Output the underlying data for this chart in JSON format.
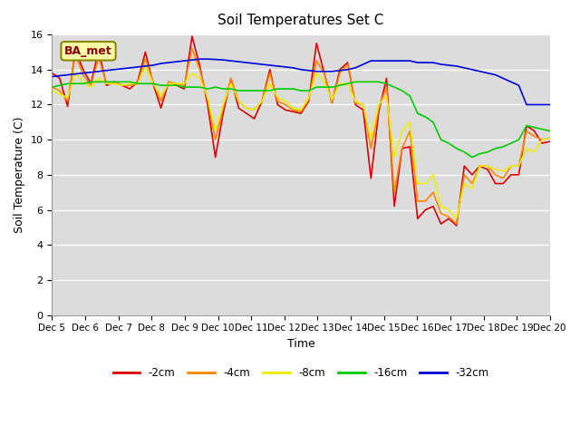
{
  "title": "Soil Temperatures Set C",
  "xlabel": "Time",
  "ylabel": "Soil Temperature (C)",
  "ylim": [
    0,
    16
  ],
  "yticks": [
    0,
    2,
    4,
    6,
    8,
    10,
    12,
    14,
    16
  ],
  "label_annotation": "BA_met",
  "bg_color": "#dcdcdc",
  "legend": [
    "-2cm",
    "-4cm",
    "-8cm",
    "-16cm",
    "-32cm"
  ],
  "colors": [
    "#dd0000",
    "#ff8800",
    "#eeee00",
    "#00cc00",
    "#0000dd"
  ],
  "x_labels": [
    "Dec 5",
    "Dec 6",
    "Dec 7",
    "Dec 8",
    "Dec 9",
    "Dec 10",
    "Dec 11",
    "Dec 12",
    "Dec 13",
    "Dec 14",
    "Dec 15",
    "Dec 16",
    "Dec 17",
    "Dec 18",
    "Dec 19",
    "Dec 20"
  ],
  "n_days": 15,
  "series_2cm": [
    13.8,
    13.5,
    11.9,
    15.1,
    14.0,
    13.2,
    15.1,
    13.1,
    13.3,
    13.1,
    12.9,
    13.3,
    15.0,
    13.2,
    11.8,
    13.3,
    13.1,
    12.9,
    15.9,
    14.2,
    12.0,
    9.0,
    11.5,
    13.5,
    11.8,
    11.5,
    11.2,
    12.2,
    14.0,
    12.0,
    11.7,
    11.6,
    11.5,
    12.2,
    15.5,
    13.8,
    12.1,
    14.0,
    14.4,
    12.0,
    11.7,
    7.8,
    11.6,
    13.5,
    6.2,
    9.5,
    9.6,
    5.5,
    6.0,
    6.2,
    5.2,
    5.5,
    5.1,
    8.5,
    8.0,
    8.5,
    8.3,
    7.5,
    7.5,
    8.0,
    8.0,
    10.8,
    10.5,
    9.8,
    9.9
  ],
  "series_4cm": [
    13.0,
    12.8,
    12.2,
    14.9,
    13.7,
    13.1,
    14.7,
    13.2,
    13.3,
    13.1,
    13.1,
    13.2,
    14.6,
    13.3,
    12.2,
    13.3,
    13.2,
    13.1,
    15.2,
    14.0,
    12.3,
    10.0,
    11.8,
    13.5,
    12.2,
    11.8,
    11.7,
    12.2,
    13.8,
    12.2,
    12.0,
    11.7,
    11.6,
    12.3,
    14.5,
    13.8,
    12.1,
    13.8,
    14.3,
    12.1,
    12.0,
    9.5,
    11.8,
    13.0,
    7.0,
    9.5,
    10.5,
    6.5,
    6.5,
    7.0,
    5.8,
    5.6,
    5.2,
    8.0,
    7.5,
    8.5,
    8.5,
    8.0,
    7.8,
    8.5,
    8.5,
    10.5,
    10.2,
    10.0,
    10.1
  ],
  "series_8cm": [
    12.8,
    12.6,
    12.4,
    13.8,
    13.3,
    13.0,
    13.5,
    13.2,
    13.2,
    13.1,
    13.2,
    13.2,
    14.2,
    13.2,
    12.5,
    13.2,
    13.2,
    13.2,
    13.8,
    13.5,
    12.4,
    10.5,
    12.0,
    13.2,
    12.2,
    11.8,
    11.7,
    12.2,
    13.2,
    12.4,
    12.2,
    11.8,
    11.7,
    12.4,
    13.8,
    13.3,
    12.3,
    13.2,
    13.2,
    12.2,
    12.0,
    10.0,
    12.0,
    12.5,
    9.0,
    10.5,
    11.0,
    7.5,
    7.5,
    8.0,
    6.2,
    6.0,
    5.5,
    7.5,
    7.2,
    8.5,
    8.5,
    8.3,
    8.2,
    8.5,
    8.5,
    9.5,
    9.3,
    10.0,
    10.1
  ],
  "series_16cm": [
    13.0,
    13.1,
    13.2,
    13.2,
    13.2,
    13.3,
    13.3,
    13.3,
    13.3,
    13.3,
    13.3,
    13.2,
    13.2,
    13.2,
    13.1,
    13.1,
    13.1,
    13.0,
    13.0,
    13.0,
    12.9,
    13.0,
    12.9,
    12.9,
    12.8,
    12.8,
    12.8,
    12.8,
    12.8,
    12.9,
    12.9,
    12.9,
    12.8,
    12.8,
    13.0,
    13.0,
    13.0,
    13.1,
    13.2,
    13.3,
    13.3,
    13.3,
    13.3,
    13.2,
    13.0,
    12.8,
    12.5,
    11.5,
    11.3,
    11.0,
    10.0,
    9.8,
    9.5,
    9.3,
    9.0,
    9.2,
    9.3,
    9.5,
    9.6,
    9.8,
    10.0,
    10.8,
    10.7,
    10.6,
    10.5
  ],
  "series_32cm": [
    13.6,
    13.65,
    13.7,
    13.75,
    13.8,
    13.85,
    13.9,
    13.95,
    14.0,
    14.05,
    14.1,
    14.15,
    14.2,
    14.25,
    14.35,
    14.4,
    14.45,
    14.5,
    14.55,
    14.6,
    14.6,
    14.58,
    14.55,
    14.5,
    14.45,
    14.4,
    14.35,
    14.3,
    14.25,
    14.2,
    14.15,
    14.1,
    14.0,
    13.95,
    13.9,
    13.9,
    13.9,
    13.95,
    14.0,
    14.1,
    14.3,
    14.5,
    14.5,
    14.5,
    14.5,
    14.5,
    14.5,
    14.4,
    14.4,
    14.4,
    14.3,
    14.25,
    14.2,
    14.1,
    14.0,
    13.9,
    13.8,
    13.7,
    13.5,
    13.3,
    13.1,
    12.0,
    12.0,
    12.0,
    12.0
  ]
}
